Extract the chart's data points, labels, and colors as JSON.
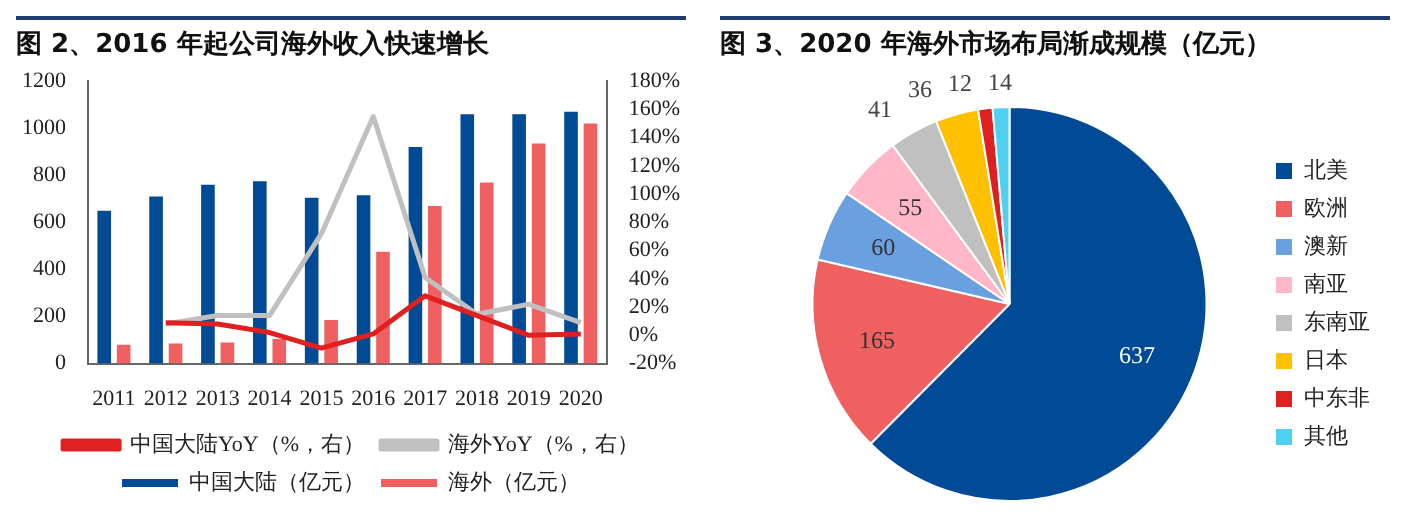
{
  "chart_data": [
    {
      "type": "bar",
      "title": "图 2、2016 年起公司海外收入快速增长",
      "categories": [
        "2011",
        "2012",
        "2013",
        "2014",
        "2015",
        "2016",
        "2017",
        "2018",
        "2019",
        "2020"
      ],
      "series": [
        {
          "name": "中国大陆（亿元）",
          "color": "#004a96",
          "values": [
            650,
            710,
            760,
            775,
            705,
            715,
            920,
            1060,
            1060,
            1070
          ]
        },
        {
          "name": "海外（亿元）",
          "color": "#f06060",
          "values": [
            80,
            85,
            90,
            105,
            185,
            475,
            670,
            770,
            935,
            1020
          ]
        },
        {
          "name": "中国大陆YoY（%，右）",
          "type": "line",
          "axis": "y2",
          "color": "#e02020",
          "values": [
            null,
            9,
            8,
            2,
            -9,
            1,
            28,
            14,
            0,
            1
          ]
        },
        {
          "name": "海外YoY（%，右）",
          "type": "line",
          "axis": "y2",
          "color": "#c0c0c0",
          "values": [
            null,
            8,
            14,
            14,
            72,
            155,
            41,
            15,
            22,
            9
          ]
        }
      ],
      "ylim": [
        0,
        1200
      ],
      "yticks": [
        0,
        200,
        400,
        600,
        800,
        1000,
        1200
      ],
      "y2lim": [
        -20,
        180
      ],
      "y2ticks": [
        {
          "value": -20,
          "label": "-20%"
        },
        {
          "value": 0,
          "label": "0%"
        },
        {
          "value": 20,
          "label": "20%"
        },
        {
          "value": 40,
          "label": "40%"
        },
        {
          "value": 60,
          "label": "60%"
        },
        {
          "value": 80,
          "label": "80%"
        },
        {
          "value": 100,
          "label": "100%"
        },
        {
          "value": 120,
          "label": "120%"
        },
        {
          "value": 140,
          "label": "140%"
        },
        {
          "value": 160,
          "label": "160%"
        },
        {
          "value": 180,
          "label": "180%"
        }
      ],
      "legend": "bottom",
      "marker": "none"
    },
    {
      "type": "pie",
      "title": "图 3、2020 年海外市场布局渐成规模（亿元）",
      "categories": [
        "北美",
        "欧洲",
        "澳新",
        "南亚",
        "东南亚",
        "日本",
        "中东非",
        "其他"
      ],
      "values": [
        637,
        165,
        60,
        55,
        41,
        36,
        12,
        14
      ],
      "colors": [
        "#004a96",
        "#f06060",
        "#6aa0e0",
        "#ffb6c8",
        "#c0c0c0",
        "#ffc000",
        "#e02020",
        "#50d0f0"
      ],
      "data_labels": true,
      "legend": "right"
    }
  ]
}
